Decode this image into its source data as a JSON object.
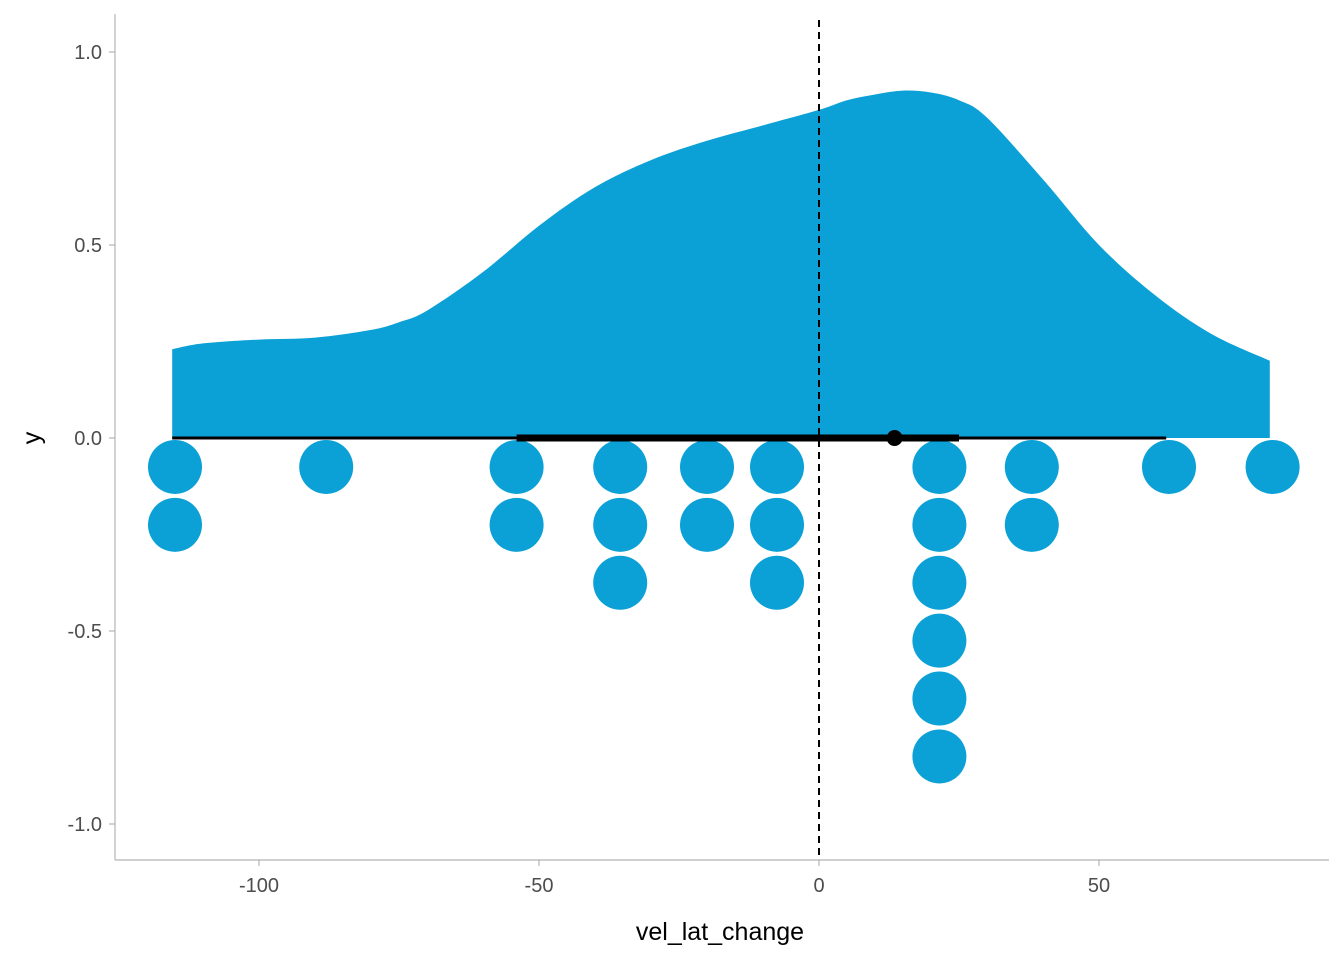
{
  "chart_data": {
    "type": "dotplot-halfeye",
    "title": "",
    "xlabel": "vel_lat_change",
    "ylabel": "y",
    "xlim": [
      -125,
      91
    ],
    "ylim": [
      -1.1,
      1.1
    ],
    "x_ticks": [
      {
        "value": -100,
        "label": "-100"
      },
      {
        "value": -50,
        "label": "-50"
      },
      {
        "value": 0,
        "label": "0"
      },
      {
        "value": 50,
        "label": "50"
      }
    ],
    "y_ticks": [
      {
        "value": 1.0,
        "label": "1.0"
      },
      {
        "value": 0.5,
        "label": "0.5"
      },
      {
        "value": 0.0,
        "label": "0.0"
      },
      {
        "value": -0.5,
        "label": "-0.5"
      },
      {
        "value": -1.0,
        "label": "-1.0"
      }
    ],
    "colors": {
      "fill": "#0ca1d6",
      "interval": "#000000",
      "reference_line": "#000000"
    },
    "reference_line_x": 0,
    "density": {
      "x": [
        -115.5,
        -110,
        -100,
        -90,
        -80,
        -75,
        -70,
        -60,
        -50,
        -40,
        -30,
        -20,
        -10,
        0,
        5,
        10,
        15,
        20,
        25,
        30,
        40,
        50,
        60,
        70,
        80.5
      ],
      "y": [
        0.23,
        0.245,
        0.255,
        0.26,
        0.28,
        0.3,
        0.33,
        0.43,
        0.55,
        0.65,
        0.72,
        0.77,
        0.81,
        0.85,
        0.875,
        0.89,
        0.9,
        0.895,
        0.875,
        0.83,
        0.67,
        0.5,
        0.37,
        0.27,
        0.2
      ]
    },
    "point_interval": {
      "point": 13.5,
      "y": 0,
      "interval_inner": [
        -54,
        25
      ],
      "interval_outer": [
        -115.5,
        62
      ]
    },
    "dots": {
      "binwidth_y": 0.15,
      "stacks": [
        {
          "x": -115,
          "count": 2
        },
        {
          "x": -88,
          "count": 1
        },
        {
          "x": -54,
          "count": 2
        },
        {
          "x": -35.5,
          "count": 3
        },
        {
          "x": -20,
          "count": 2
        },
        {
          "x": -7.5,
          "count": 3
        },
        {
          "x": 21.5,
          "count": 6
        },
        {
          "x": 38,
          "count": 2
        },
        {
          "x": 62.5,
          "count": 1
        },
        {
          "x": 81,
          "count": 1
        }
      ]
    }
  }
}
